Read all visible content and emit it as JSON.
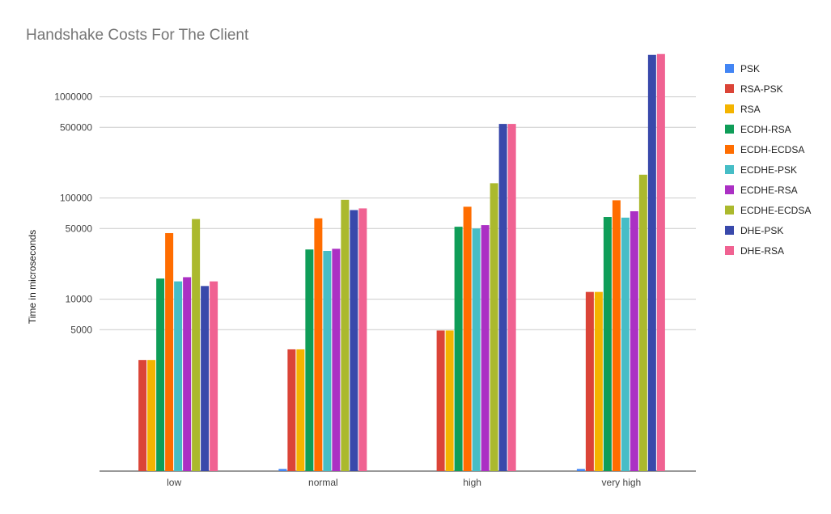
{
  "chart_data": {
    "type": "bar",
    "title": "Handshake Costs For The Client",
    "xlabel": "",
    "ylabel": "Time in microseconds",
    "yscale": "log",
    "ylim": [
      200,
      3000000
    ],
    "yticks": [
      5000,
      10000,
      50000,
      100000,
      500000,
      1000000
    ],
    "ytick_labels": [
      "5000",
      "10000",
      "50000",
      "100000",
      "500000",
      "1000000"
    ],
    "grid": true,
    "legend_position": "right",
    "categories": [
      "low",
      "normal",
      "high",
      "very high"
    ],
    "series": [
      {
        "name": "PSK",
        "color": "#4285F4",
        "values": [
          null,
          210,
          null,
          210
        ]
      },
      {
        "name": "RSA-PSK",
        "color": "#DB4437",
        "values": [
          2500,
          3200,
          4900,
          11800
        ]
      },
      {
        "name": "RSA",
        "color": "#F4B400",
        "values": [
          2500,
          3200,
          4900,
          11800
        ]
      },
      {
        "name": "ECDH-RSA",
        "color": "#0F9D58",
        "values": [
          16000,
          31000,
          52000,
          65000
        ]
      },
      {
        "name": "ECDH-ECDSA",
        "color": "#FF6D00",
        "values": [
          45000,
          63000,
          82000,
          95000
        ]
      },
      {
        "name": "ECDHE-PSK",
        "color": "#46BDC6",
        "values": [
          15000,
          30000,
          50000,
          64000
        ]
      },
      {
        "name": "ECDHE-RSA",
        "color": "#AB30C4",
        "values": [
          16500,
          31500,
          54000,
          74000
        ]
      },
      {
        "name": "ECDHE-ECDSA",
        "color": "#ABB92D",
        "values": [
          62000,
          96000,
          140000,
          170000
        ]
      },
      {
        "name": "DHE-PSK",
        "color": "#3949AB",
        "values": [
          13500,
          76000,
          540000,
          2600000
        ]
      },
      {
        "name": "DHE-RSA",
        "color": "#F06292",
        "values": [
          15000,
          79000,
          540000,
          2650000
        ]
      }
    ]
  }
}
